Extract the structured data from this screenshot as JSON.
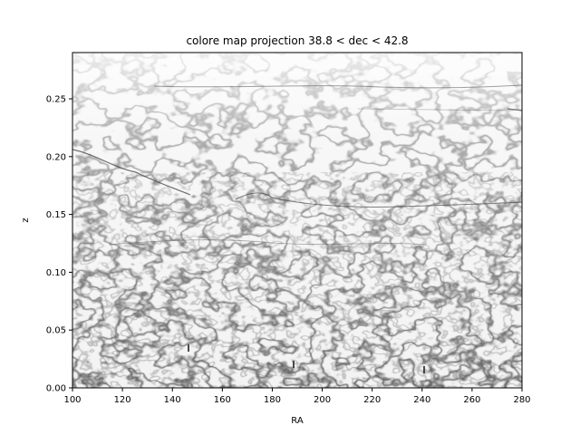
{
  "chart_data": {
    "type": "heatmap",
    "title": "colore map projection 38.8 < dec < 42.8",
    "xlabel": "RA",
    "ylabel": "z",
    "xlim": [
      100,
      280
    ],
    "ylim": [
      0.0,
      0.29
    ],
    "xticks": [
      100,
      120,
      140,
      160,
      180,
      200,
      220,
      240,
      260,
      280
    ],
    "xtick_labels": [
      "100",
      "120",
      "140",
      "160",
      "180",
      "200",
      "220",
      "240",
      "260",
      "280"
    ],
    "yticks": [
      0.0,
      0.05,
      0.1,
      0.15,
      0.2,
      0.25
    ],
    "ytick_labels": [
      "0.00",
      "0.05",
      "0.10",
      "0.15",
      "0.20",
      "0.25"
    ],
    "colormap": "Greys",
    "grid": false
  }
}
